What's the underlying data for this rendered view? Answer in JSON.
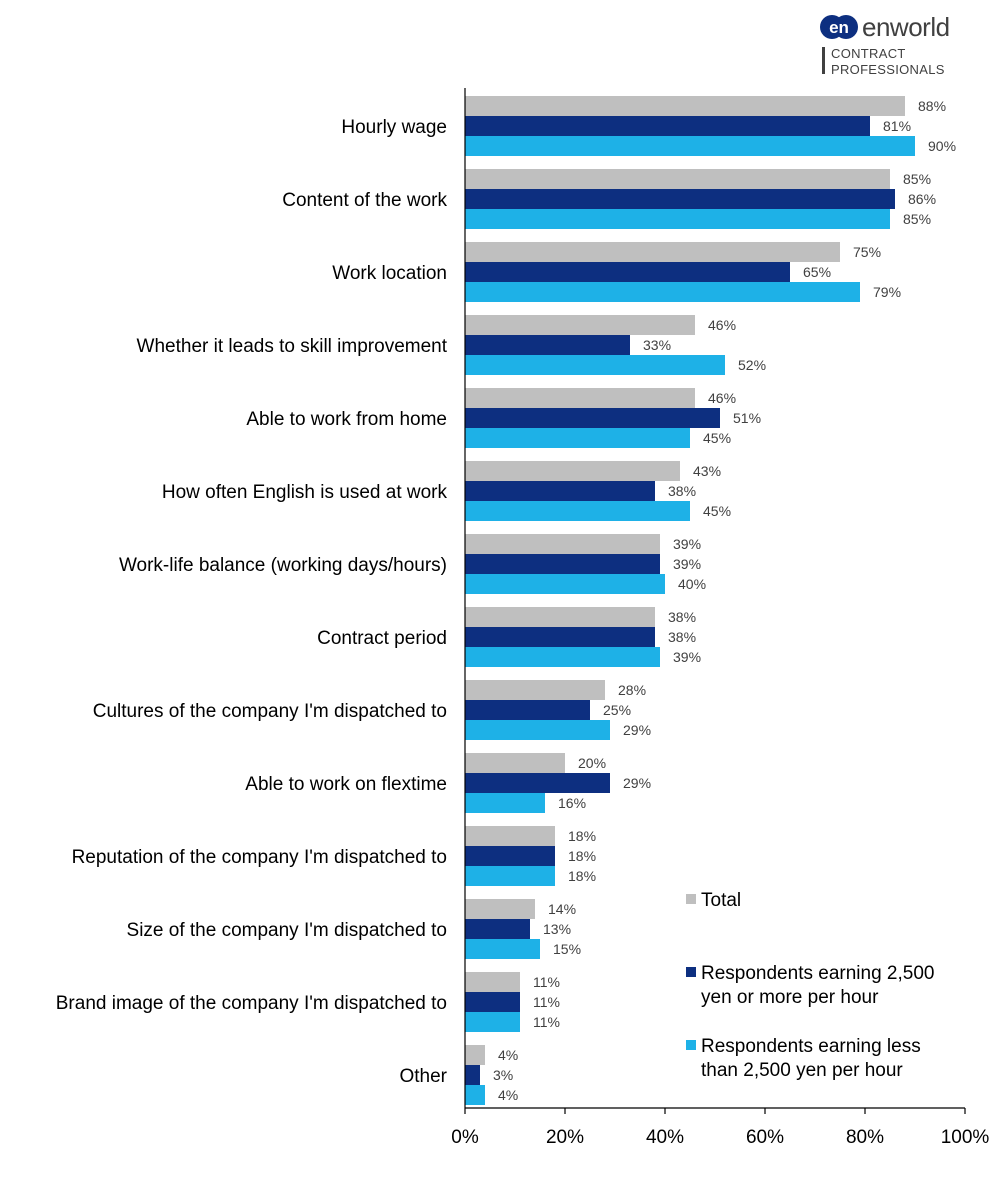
{
  "logo": {
    "badge": "en",
    "name": "enworld",
    "sub_line1": "CONTRACT",
    "sub_line2": "PROFESSIONALS"
  },
  "colors": {
    "total": "#bfbfbf",
    "high_earners": "#0d2f80",
    "low_earners": "#1eb1e7",
    "logo_badge": "#0d2f80",
    "logo_accent": "#1eb1e7"
  },
  "chart_data": {
    "type": "bar",
    "orientation": "horizontal",
    "categories": [
      "Hourly wage",
      "Content of the work",
      "Work location",
      "Whether it leads to skill improvement",
      "Able to work from home",
      "How often English is used at work",
      "Work-life balance (working days/hours)",
      "Contract period",
      "Cultures of the company I'm dispatched to",
      "Able to work on flextime",
      "Reputation of the company I'm dispatched to",
      "Size of the company I'm dispatched to",
      "Brand image of the company I'm dispatched to",
      "Other"
    ],
    "series": [
      {
        "name": "Total",
        "color": "#bfbfbf",
        "values": [
          88,
          85,
          75,
          46,
          46,
          43,
          39,
          38,
          28,
          20,
          18,
          14,
          11,
          4
        ]
      },
      {
        "name": "Respondents earning  2,500 yen or more per hour",
        "color": "#0d2f80",
        "values": [
          81,
          86,
          65,
          33,
          51,
          38,
          39,
          38,
          25,
          29,
          18,
          13,
          11,
          3
        ]
      },
      {
        "name": "Respondents earning less than 2,500 yen per hour",
        "color": "#1eb1e7",
        "values": [
          90,
          85,
          79,
          52,
          45,
          45,
          40,
          39,
          29,
          16,
          18,
          15,
          11,
          4
        ]
      }
    ],
    "xlim": [
      0,
      100
    ],
    "xticks": [
      "0%",
      "20%",
      "40%",
      "60%",
      "80%",
      "100%"
    ],
    "value_suffix": "%",
    "grid": false,
    "legend_position": "bottom-right",
    "legend": [
      {
        "lines": [
          "Total"
        ]
      },
      {
        "lines": [
          "Respondents earning  2,500",
          "yen or more per hour"
        ]
      },
      {
        "lines": [
          "Respondents earning less",
          "than 2,500 yen per hour"
        ]
      }
    ]
  }
}
